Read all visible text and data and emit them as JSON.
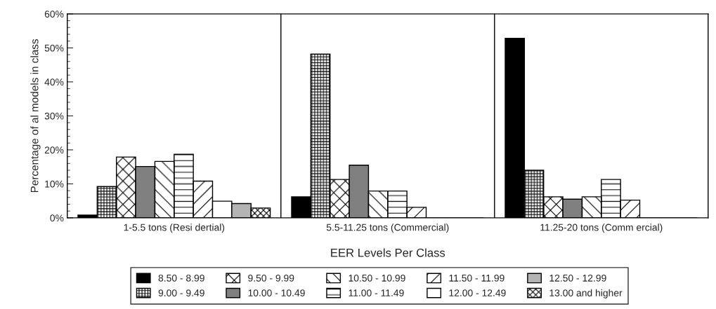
{
  "chart_data": {
    "type": "bar",
    "xlabel": "EER Levels Per Class",
    "ylabel": "Percentage of al models in class",
    "categories": [
      "1-5.5 tons (Resi dertial)",
      "5.5-11.25 tons (Commercial)",
      "11.25-20 tons (Comm ercial)"
    ],
    "ylim": [
      0,
      60
    ],
    "yticks": [
      {
        "value": 0,
        "label": "0%"
      },
      {
        "value": 10,
        "label": "10%"
      },
      {
        "value": 20,
        "label": "20%"
      },
      {
        "value": 30,
        "label": "30%"
      },
      {
        "value": 40,
        "label": "40%"
      },
      {
        "value": 50,
        "label": "50%"
      },
      {
        "value": 60,
        "label": "60%"
      }
    ],
    "legend": "bottom",
    "grid": false,
    "series": [
      {
        "name": "8.50 - 8.99",
        "color": "#000000",
        "values": [
          0.8,
          6.2,
          52.8
        ]
      },
      {
        "name": "9.00 - 9.49",
        "color": "#000000",
        "values": [
          9.2,
          48.2,
          14.0
        ]
      },
      {
        "name": "9.50 - 9.99",
        "color": "#000000",
        "values": [
          17.9,
          11.3,
          6.2
        ]
      },
      {
        "name": "10.00 - 10.49",
        "color": "#808080",
        "values": [
          15.1,
          15.5,
          5.5
        ]
      },
      {
        "name": "10.50 - 10.99",
        "color": "#000000",
        "values": [
          16.6,
          7.9,
          6.2
        ]
      },
      {
        "name": "11.00 - 11.49",
        "color": "#000000",
        "values": [
          18.7,
          7.9,
          11.3
        ]
      },
      {
        "name": "11.50 - 11.99",
        "color": "#000000",
        "values": [
          10.8,
          3.1,
          5.2
        ]
      },
      {
        "name": "12.00 - 12.49",
        "color": "#ffffff",
        "values": [
          4.9,
          0,
          0
        ]
      },
      {
        "name": "12.50 - 12.99",
        "color": "#b4b4b4",
        "values": [
          4.2,
          0,
          0
        ]
      },
      {
        "name": "13.00 and higher",
        "color": "#000000",
        "values": [
          2.9,
          0,
          0
        ]
      }
    ]
  }
}
